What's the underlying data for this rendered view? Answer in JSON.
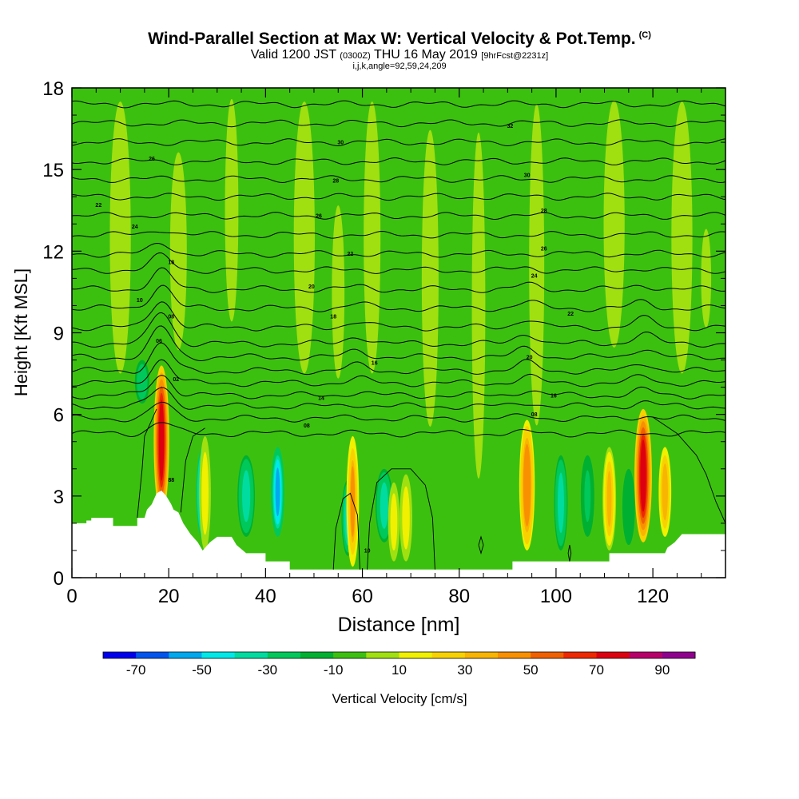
{
  "header": {
    "title": "Wind-Parallel Section at Max W: Vertical Velocity & Pot.Temp.",
    "copyright": "(C)",
    "subtitle_main_a": "Valid 1200 JST",
    "subtitle_utc": "(0300Z)",
    "subtitle_main_b": "THU 16 May 2019",
    "subtitle_fcst": "[9hrFcst@2231z]",
    "params": "i,j,k,angle=92,59,24,209"
  },
  "chart_data": {
    "type": "heatmap",
    "title": "Wind-Parallel Section at Max W: Vertical Velocity & Pot.Temp.",
    "xlabel": "Distance [nm]",
    "ylabel": "Height [Kft MSL]",
    "xlim": [
      0,
      135
    ],
    "ylim": [
      0,
      18
    ],
    "x_ticks": [
      0,
      20,
      40,
      60,
      80,
      100,
      120
    ],
    "x_tick_labels": [
      "0",
      "20",
      "40",
      "60",
      "80",
      "100",
      "120"
    ],
    "y_ticks": [
      0,
      3,
      6,
      9,
      12,
      15,
      18
    ],
    "y_tick_labels": [
      "0",
      "3",
      "6",
      "9",
      "12",
      "15",
      "18"
    ],
    "background_value": -5,
    "terrain_profile": [
      [
        0,
        2.0
      ],
      [
        3,
        2.0
      ],
      [
        3,
        2.1
      ],
      [
        4,
        2.1
      ],
      [
        4,
        2.2
      ],
      [
        8.5,
        2.2
      ],
      [
        8.5,
        1.9
      ],
      [
        13.5,
        1.9
      ],
      [
        13.5,
        2.2
      ],
      [
        15,
        2.2
      ],
      [
        15.5,
        2.5
      ],
      [
        16.5,
        2.7
      ],
      [
        17.5,
        3.1
      ],
      [
        18.5,
        3.2
      ],
      [
        19.5,
        3.0
      ],
      [
        20.5,
        2.7
      ],
      [
        21,
        2.5
      ],
      [
        22,
        2.4
      ],
      [
        23,
        2.0
      ],
      [
        24.5,
        1.6
      ],
      [
        26,
        1.3
      ],
      [
        27,
        1.0
      ],
      [
        28.5,
        1.3
      ],
      [
        30,
        1.5
      ],
      [
        33,
        1.5
      ],
      [
        34,
        1.2
      ],
      [
        36,
        0.9
      ],
      [
        40,
        0.9
      ],
      [
        40,
        0.6
      ],
      [
        45,
        0.6
      ],
      [
        45,
        0.3
      ],
      [
        91,
        0.3
      ],
      [
        91,
        0.6
      ],
      [
        111,
        0.6
      ],
      [
        111,
        0.9
      ],
      [
        122.5,
        0.9
      ],
      [
        123,
        1.1
      ],
      [
        124.5,
        1.3
      ],
      [
        126,
        1.6
      ],
      [
        135,
        1.6
      ]
    ],
    "updrafts": [
      {
        "x": 18.5,
        "z0": 2.3,
        "z1": 7.8,
        "peak": 75,
        "width": 1.6
      },
      {
        "x": 27.5,
        "z0": 1.0,
        "z1": 5.2,
        "peak": 18,
        "width": 1.2
      },
      {
        "x": 58.0,
        "z0": 0.4,
        "z1": 5.2,
        "peak": 40,
        "width": 1.3
      },
      {
        "x": 66.5,
        "z0": 0.6,
        "z1": 3.5,
        "peak": 15,
        "width": 1.2
      },
      {
        "x": 69.0,
        "z0": 0.6,
        "z1": 3.8,
        "peak": 18,
        "width": 1.3
      },
      {
        "x": 94.0,
        "z0": 1.0,
        "z1": 5.8,
        "peak": 48,
        "width": 1.6
      },
      {
        "x": 111.0,
        "z0": 1.0,
        "z1": 4.8,
        "peak": 30,
        "width": 1.4
      },
      {
        "x": 118.0,
        "z0": 1.3,
        "z1": 6.2,
        "peak": 72,
        "width": 1.8
      },
      {
        "x": 122.5,
        "z0": 1.5,
        "z1": 4.8,
        "peak": 35,
        "width": 1.3
      }
    ],
    "downdrafts": [
      {
        "x": 14.5,
        "z0": 6.4,
        "z1": 8.0,
        "peak": -30,
        "width": 1.5
      },
      {
        "x": 27.0,
        "z0": 1.4,
        "z1": 4.8,
        "peak": -60,
        "width": 1.3
      },
      {
        "x": 36.0,
        "z0": 1.5,
        "z1": 4.5,
        "peak": -38,
        "width": 1.8
      },
      {
        "x": 42.5,
        "z0": 1.5,
        "z1": 4.8,
        "peak": -52,
        "width": 1.4
      },
      {
        "x": 57.0,
        "z0": 0.8,
        "z1": 3.6,
        "peak": -42,
        "width": 1.3
      },
      {
        "x": 64.5,
        "z0": 1.3,
        "z1": 4.0,
        "peak": -38,
        "width": 1.8
      },
      {
        "x": 101.0,
        "z0": 1.0,
        "z1": 4.5,
        "peak": -38,
        "width": 1.4
      },
      {
        "x": 106.5,
        "z0": 1.5,
        "z1": 4.5,
        "peak": -25,
        "width": 1.4
      },
      {
        "x": 115.0,
        "z0": 1.2,
        "z1": 4.0,
        "peak": -20,
        "width": 1.3
      }
    ],
    "weak_updraft_plumes": [
      {
        "x": 10,
        "z0": 7,
        "z1": 18,
        "peak": 8,
        "width": 2.5
      },
      {
        "x": 22,
        "z0": 8,
        "z1": 16,
        "peak": 8,
        "width": 2.0
      },
      {
        "x": 33,
        "z0": 9,
        "z1": 18,
        "peak": 8,
        "width": 1.6
      },
      {
        "x": 48,
        "z0": 7,
        "z1": 18,
        "peak": 8,
        "width": 2.5
      },
      {
        "x": 55,
        "z0": 7,
        "z1": 14,
        "peak": 8,
        "width": 1.5
      },
      {
        "x": 62,
        "z0": 7,
        "z1": 18,
        "peak": 8,
        "width": 2.0
      },
      {
        "x": 74,
        "z0": 5,
        "z1": 17,
        "peak": 8,
        "width": 2.0
      },
      {
        "x": 84,
        "z0": 3,
        "z1": 17,
        "peak": 8,
        "width": 1.6
      },
      {
        "x": 96,
        "z0": 5,
        "z1": 18,
        "peak": 8,
        "width": 1.8
      },
      {
        "x": 112,
        "z0": 8,
        "z1": 18,
        "peak": 8,
        "width": 2.5
      },
      {
        "x": 126,
        "z0": 7,
        "z1": 18,
        "peak": 8,
        "width": 2.5
      },
      {
        "x": 131,
        "z0": 9,
        "z1": 13,
        "peak": 8,
        "width": 1.2
      }
    ],
    "theta_contours": {
      "base_levels": [
        5.3,
        5.85,
        6.3,
        6.7,
        7.15,
        7.6,
        8.1,
        8.6,
        9.2,
        9.9,
        10.6,
        11.3,
        11.9,
        12.6,
        13.3,
        14.0,
        14.65,
        15.3,
        16.0,
        16.7,
        17.4
      ],
      "perturbations": [
        {
          "x": 18.5,
          "amp": 1.2,
          "width": 3.0,
          "decay": 5.0
        },
        {
          "x": 59,
          "amp": 0.3,
          "width": 3.0,
          "decay": 3.0
        },
        {
          "x": 94,
          "amp": 0.4,
          "width": 3.0,
          "decay": 3.5
        },
        {
          "x": 118,
          "amp": 0.4,
          "width": 3.0,
          "decay": 3.5
        }
      ]
    },
    "contour_labels": [
      {
        "x": 5.5,
        "z": 13.7,
        "text": "22"
      },
      {
        "x": 16.5,
        "z": 15.4,
        "text": "26"
      },
      {
        "x": 13.0,
        "z": 12.9,
        "text": "24"
      },
      {
        "x": 20.5,
        "z": 11.6,
        "text": "18"
      },
      {
        "x": 14.0,
        "z": 10.2,
        "text": "10"
      },
      {
        "x": 20.5,
        "z": 9.6,
        "text": "08"
      },
      {
        "x": 18.0,
        "z": 8.7,
        "text": "06"
      },
      {
        "x": 21.5,
        "z": 7.3,
        "text": "02"
      },
      {
        "x": 20.5,
        "z": 3.6,
        "text": "88"
      },
      {
        "x": 55.5,
        "z": 16.0,
        "text": "30"
      },
      {
        "x": 54.5,
        "z": 14.6,
        "text": "28"
      },
      {
        "x": 51.0,
        "z": 13.3,
        "text": "26"
      },
      {
        "x": 57.5,
        "z": 11.9,
        "text": "22"
      },
      {
        "x": 49.5,
        "z": 10.7,
        "text": "20"
      },
      {
        "x": 54.0,
        "z": 9.6,
        "text": "18"
      },
      {
        "x": 62.5,
        "z": 7.9,
        "text": "16"
      },
      {
        "x": 51.5,
        "z": 6.6,
        "text": "14"
      },
      {
        "x": 48.5,
        "z": 5.6,
        "text": "08"
      },
      {
        "x": 61.0,
        "z": 1.0,
        "text": "10"
      },
      {
        "x": 90.5,
        "z": 16.6,
        "text": "32"
      },
      {
        "x": 94.0,
        "z": 14.8,
        "text": "30"
      },
      {
        "x": 97.5,
        "z": 13.5,
        "text": "28"
      },
      {
        "x": 97.5,
        "z": 12.1,
        "text": "26"
      },
      {
        "x": 95.5,
        "z": 11.1,
        "text": "24"
      },
      {
        "x": 103.0,
        "z": 9.7,
        "text": "22"
      },
      {
        "x": 94.5,
        "z": 8.1,
        "text": "20"
      },
      {
        "x": 99.5,
        "z": 6.7,
        "text": "16"
      },
      {
        "x": 95.5,
        "z": 6.0,
        "text": "08"
      }
    ],
    "zero_contours": [
      [
        [
          13.5,
          2.2
        ],
        [
          14.5,
          4.0
        ],
        [
          15,
          5.2
        ],
        [
          16.5,
          5.8
        ],
        [
          17.5,
          6.2
        ]
      ],
      [
        [
          22.5,
          2.4
        ],
        [
          23.5,
          4.3
        ],
        [
          25,
          5.2
        ],
        [
          27.5,
          5.5
        ]
      ],
      [
        [
          54,
          0.3
        ],
        [
          54.5,
          1.8
        ],
        [
          56,
          2.9
        ],
        [
          57.5,
          3.1
        ],
        [
          59,
          2.3
        ],
        [
          59.5,
          0.3
        ]
      ],
      [
        [
          61,
          0.3
        ],
        [
          61.5,
          2.0
        ],
        [
          63,
          3.5
        ],
        [
          66,
          4.0
        ],
        [
          70,
          4.0
        ],
        [
          73,
          3.4
        ],
        [
          74.5,
          2.2
        ],
        [
          75,
          0.3
        ]
      ],
      [
        [
          84,
          1.2
        ],
        [
          84.5,
          0.9
        ],
        [
          85,
          1.2
        ],
        [
          84.5,
          1.5
        ],
        [
          84,
          1.2
        ]
      ],
      [
        [
          102.5,
          0.9
        ],
        [
          102.8,
          0.6
        ],
        [
          103.1,
          0.9
        ],
        [
          102.8,
          1.2
        ],
        [
          102.5,
          0.9
        ]
      ],
      [
        [
          120,
          5.9
        ],
        [
          125,
          5.3
        ],
        [
          129,
          4.5
        ],
        [
          131,
          3.8
        ],
        [
          133,
          2.8
        ],
        [
          135,
          2.0
        ]
      ]
    ],
    "colorbar": {
      "label": "Vertical Velocity [cm/s]",
      "bounds": [
        -80,
        -70,
        -60,
        -50,
        -40,
        -30,
        -20,
        -10,
        0,
        10,
        20,
        30,
        40,
        50,
        60,
        70,
        80,
        90,
        100
      ],
      "colors": [
        "#0000ee",
        "#0055ee",
        "#00a8ee",
        "#00e8e8",
        "#00dca0",
        "#00c85a",
        "#00b030",
        "#3cc010",
        "#a0e010",
        "#f0f000",
        "#f8d200",
        "#f8b400",
        "#f89000",
        "#f06000",
        "#ee2800",
        "#dd0010",
        "#b8006a",
        "#90008e"
      ],
      "tick_values": [
        -70,
        -50,
        -30,
        -10,
        10,
        30,
        50,
        70,
        90
      ],
      "tick_labels": [
        "-70",
        "-50",
        "-30",
        "-10",
        "10",
        "30",
        "50",
        "70",
        "90"
      ]
    }
  }
}
